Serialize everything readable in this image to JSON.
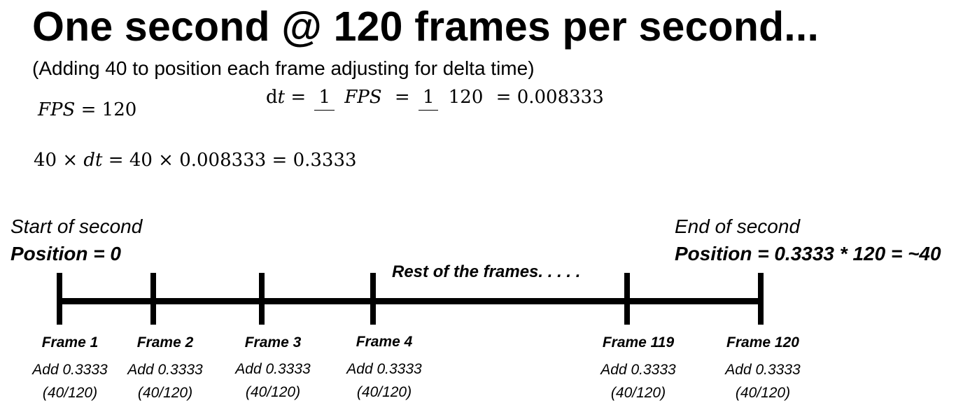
{
  "title": "One second @ 120 frames per second...",
  "subtitle": "(Adding 40 to position each frame adjusting for delta time)",
  "equations": {
    "fps_lhs": "FPS",
    "fps_eq": " = 120",
    "dt_lhs": "d",
    "dt_t": "t",
    "dt_eq1": " = ",
    "frac1_num": "1",
    "frac1_den": "FPS",
    "dt_eq2": " = ",
    "frac2_num": "1",
    "frac2_den": "120",
    "dt_result": " = 0.008333",
    "mult_a": "40 × ",
    "mult_dt": "dt",
    "mult_rest": " = 40 × 0.008333 = 0.3333"
  },
  "timeline": {
    "start_label": "Start of second",
    "start_position": "Position = 0",
    "end_label": "End of second",
    "end_position": "Position = 0.3333 * 120 = ~40",
    "rest_label": "Rest of the frames. . . . .",
    "frames": [
      {
        "name": "Frame 1",
        "add": "Add 0.3333",
        "fraction": "(40/120)"
      },
      {
        "name": "Frame 2",
        "add": "Add 0.3333",
        "fraction": "(40/120)"
      },
      {
        "name": "Frame 3",
        "add": "Add 0.3333",
        "fraction": "(40/120)"
      },
      {
        "name": "Frame 4",
        "add": "Add 0.3333",
        "fraction": "(40/120)"
      },
      {
        "name": "Frame 119",
        "add": "Add 0.3333",
        "fraction": "(40/120)"
      },
      {
        "name": "Frame 120",
        "add": "Add 0.3333",
        "fraction": "(40/120)"
      }
    ]
  }
}
